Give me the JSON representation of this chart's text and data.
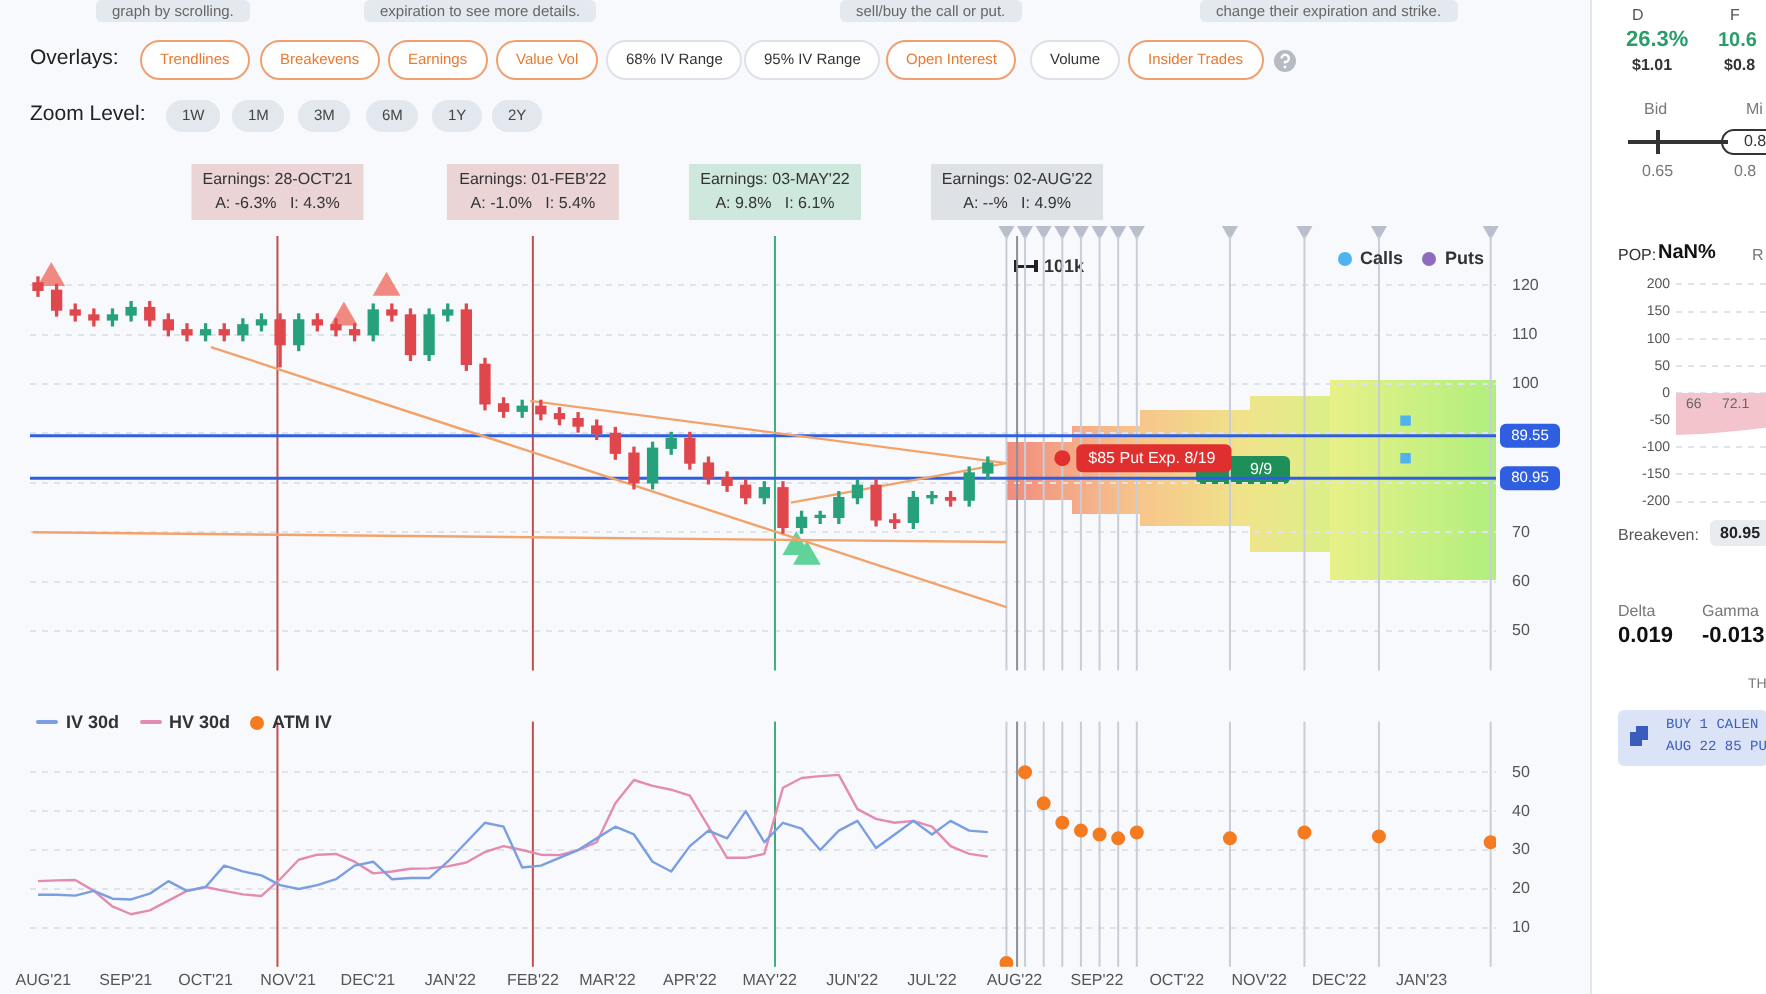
{
  "chart_data": [
    {
      "type": "candlestick",
      "x": [
        "2021-07-30",
        "2021-08-06",
        "2021-08-13",
        "2021-08-20",
        "2021-08-27",
        "2021-09-03",
        "2021-09-10",
        "2021-09-17",
        "2021-09-24",
        "2021-10-01",
        "2021-10-08",
        "2021-10-15",
        "2021-10-22",
        "2021-10-29",
        "2021-11-05",
        "2021-11-12",
        "2021-11-19",
        "2021-11-26",
        "2021-12-03",
        "2021-12-10",
        "2021-12-17",
        "2021-12-24",
        "2021-12-31",
        "2022-01-07",
        "2022-01-14",
        "2022-01-21",
        "2022-01-28",
        "2022-02-04",
        "2022-02-11",
        "2022-02-18",
        "2022-02-25",
        "2022-03-04",
        "2022-03-11",
        "2022-03-18",
        "2022-03-25",
        "2022-04-01",
        "2022-04-08",
        "2022-04-15",
        "2022-04-22",
        "2022-04-29",
        "2022-05-06",
        "2022-05-13",
        "2022-05-20",
        "2022-05-27",
        "2022-06-03",
        "2022-06-10",
        "2022-06-17",
        "2022-06-24",
        "2022-07-01",
        "2022-07-08",
        "2022-07-15",
        "2022-07-22"
      ],
      "ohlc": [
        [
          120.5,
          121.7,
          117.8,
          119
        ],
        [
          119,
          120.2,
          113.8,
          115
        ],
        [
          115,
          116.2,
          112.8,
          114
        ],
        [
          114,
          115.2,
          111.8,
          113
        ],
        [
          113,
          115.2,
          111.8,
          114
        ],
        [
          114,
          116.7,
          112.8,
          115.5
        ],
        [
          115.5,
          116.7,
          111.8,
          113
        ],
        [
          113,
          114.2,
          109.8,
          111
        ],
        [
          111,
          112.2,
          108.8,
          110
        ],
        [
          110,
          112.2,
          108.8,
          111
        ],
        [
          111,
          112.2,
          108.8,
          110
        ],
        [
          110,
          113.2,
          108.8,
          112
        ],
        [
          112,
          114.2,
          110.8,
          113
        ],
        [
          113,
          114.2,
          103.5,
          108
        ],
        [
          108,
          114.2,
          106.8,
          113
        ],
        [
          113,
          114.2,
          110.8,
          112
        ],
        [
          112,
          113.2,
          109.8,
          111
        ],
        [
          111,
          112.2,
          108.8,
          110
        ],
        [
          110,
          116.2,
          108.8,
          115
        ],
        [
          115,
          116.2,
          112.8,
          114
        ],
        [
          114,
          115.2,
          104.8,
          106
        ],
        [
          106,
          115.2,
          104.8,
          114
        ],
        [
          114,
          116.2,
          112.8,
          115
        ],
        [
          115,
          116.2,
          102.8,
          104
        ],
        [
          104,
          105.2,
          94.8,
          96
        ],
        [
          96,
          97.2,
          93.3,
          94.5
        ],
        [
          94.5,
          96.7,
          93.3,
          95.5
        ],
        [
          95.5,
          96.7,
          92.8,
          94
        ],
        [
          94,
          95.2,
          91.8,
          93
        ],
        [
          93,
          94.2,
          90.3,
          91.5
        ],
        [
          91.5,
          92.7,
          88.8,
          90
        ],
        [
          90,
          91.2,
          84.8,
          86
        ],
        [
          86,
          87.2,
          78.8,
          80
        ],
        [
          80,
          88.2,
          78.8,
          87
        ],
        [
          87,
          90.2,
          85.8,
          89
        ],
        [
          89,
          90.2,
          82.8,
          84
        ],
        [
          84,
          85.2,
          79.8,
          81
        ],
        [
          81,
          82.2,
          78.3,
          79.5
        ],
        [
          79.5,
          80.7,
          75.8,
          77
        ],
        [
          77,
          80.2,
          75.8,
          79
        ],
        [
          79,
          80.2,
          69.8,
          71
        ],
        [
          71,
          74.2,
          69.8,
          73
        ],
        [
          73,
          74.2,
          71.8,
          73
        ],
        [
          73,
          78.2,
          71.8,
          77
        ],
        [
          77,
          80.7,
          75.8,
          79.5
        ],
        [
          79.5,
          80.7,
          71.3,
          72.5
        ],
        [
          72.5,
          73.7,
          70.8,
          72
        ],
        [
          72,
          78.2,
          70.8,
          77
        ],
        [
          77,
          78.2,
          75.8,
          77
        ],
        [
          77,
          78.2,
          75.3,
          76.5
        ],
        [
          76.5,
          83.2,
          75.3,
          82
        ],
        [
          82,
          85.2,
          80.8,
          84
        ]
      ],
      "colors": [
        "#e0474c",
        "#e0474c",
        "#e0474c",
        "#e0474c",
        "#26a17b",
        "#26a17b",
        "#e0474c",
        "#e0474c",
        "#e0474c",
        "#26a17b",
        "#e0474c",
        "#26a17b",
        "#26a17b",
        "#e0474c",
        "#26a17b",
        "#e0474c",
        "#e0474c",
        "#e0474c",
        "#26a17b",
        "#e0474c",
        "#e0474c",
        "#26a17b",
        "#26a17b",
        "#e0474c",
        "#e0474c",
        "#e0474c",
        "#26a17b",
        "#e0474c",
        "#e0474c",
        "#e0474c",
        "#e0474c",
        "#e0474c",
        "#e0474c",
        "#26a17b",
        "#26a17b",
        "#e0474c",
        "#e0474c",
        "#e0474c",
        "#e0474c",
        "#26a17b",
        "#e0474c",
        "#26a17b",
        "#26a17b",
        "#26a17b",
        "#26a17b",
        "#e0474c",
        "#e0474c",
        "#26a17b",
        "#26a17b",
        "#e0474c",
        "#26a17b",
        "#26a17b"
      ],
      "series": [
        {
          "type": "line",
          "color": "#f2a36b",
          "x": [
            "2021-10-03",
            "2022-07-29"
          ],
          "values": [
            107.5,
            54.8
          ]
        },
        {
          "type": "line",
          "color": "#f2a36b",
          "x": [
            "2022-01-31",
            "2022-07-29"
          ],
          "values": [
            96.6,
            84
          ]
        },
        {
          "type": "line",
          "color": "#f2a36b",
          "x": [
            "2021-07-28",
            "2022-07-29"
          ],
          "values": [
            70,
            68
          ]
        },
        {
          "type": "line",
          "color": "#f2a36b",
          "x": [
            "2022-05-09",
            "2022-07-29"
          ],
          "values": [
            76,
            84
          ]
        },
        {
          "type": "scatter",
          "marker": "triangle",
          "color": "#f08a80",
          "x": [
            "2021-08-04",
            "2021-11-22",
            "2021-12-08"
          ],
          "values": [
            121.5,
            113.5,
            119.5
          ]
        },
        {
          "type": "scatter",
          "marker": "triangle",
          "color": "#5fd39a",
          "x": [
            "2022-05-11",
            "2022-05-15"
          ],
          "values": [
            67,
            65
          ]
        },
        {
          "name": "Calls",
          "type": "scatter",
          "marker": "square",
          "color": "#4fb3f0",
          "x": [
            "2022-12-26",
            "2022-12-26"
          ],
          "values": [
            92.6,
            85
          ]
        },
        {
          "name": "Puts",
          "type": "scatter",
          "marker": "square",
          "color": "#8e6bbf",
          "values": [
            null,
            null,
            null,
            null,
            null,
            null,
            null,
            null,
            null,
            null,
            null,
            null,
            null,
            null,
            null,
            null,
            null,
            null,
            null,
            null,
            null,
            null,
            null,
            null,
            null,
            null,
            null,
            null,
            null,
            null,
            null,
            null,
            null,
            null,
            null,
            null,
            null,
            null,
            null,
            null,
            null,
            null,
            null,
            null,
            null,
            null,
            null,
            null,
            null,
            null,
            null,
            null
          ]
        }
      ],
      "xlim": [
        "2021-07-27",
        "2023-01-29"
      ],
      "ylim": [
        42,
        130
      ],
      "yticks": [
        50,
        60,
        70,
        {
          "value": 80,
          "label": null
        },
        {
          "value": 90,
          "label": null
        },
        100,
        110,
        120
      ],
      "tick_labels": "y",
      "grid": "y",
      "legend": "top right",
      "marker": "none",
      "ref_lines": [
        {
          "axis": "x",
          "value": "2021-10-28",
          "label": "Earnings: 28-OCT'21\nA: -6.3%   I: 4.3%",
          "color": "#c0504d"
        },
        {
          "axis": "x",
          "value": "2022-02-01",
          "label": "Earnings: 01-FEB'22\nA: -1.0%   I: 5.4%",
          "color": "#c0504d"
        },
        {
          "axis": "x",
          "value": "2022-05-03",
          "label": "Earnings: 03-MAY'22\nA: 9.8%   I: 6.1%",
          "color": "#3fae78"
        },
        {
          "axis": "x",
          "value": "2022-08-02",
          "label": "Earnings: 02-AUG'22\nA: --%   I: 4.9%",
          "color": "#8a8f99"
        },
        {
          "axis": "x",
          "value": "2022-07-29",
          "color": "#c8cdd8"
        },
        {
          "axis": "x",
          "value": "2022-08-05",
          "color": "#c8cdd8"
        },
        {
          "axis": "x",
          "value": "2022-08-12",
          "color": "#c8cdd8"
        },
        {
          "axis": "x",
          "value": "2022-08-19",
          "color": "#c8cdd8"
        },
        {
          "axis": "x",
          "value": "2022-08-26",
          "color": "#c8cdd8"
        },
        {
          "axis": "x",
          "value": "2022-09-02",
          "color": "#c8cdd8"
        },
        {
          "axis": "x",
          "value": "2022-09-09",
          "color": "#c8cdd8"
        },
        {
          "axis": "x",
          "value": "2022-09-16",
          "color": "#c8cdd8"
        },
        {
          "axis": "x",
          "value": "2022-10-21",
          "color": "#c8cdd8"
        },
        {
          "axis": "x",
          "value": "2022-11-18",
          "color": "#c8cdd8"
        },
        {
          "axis": "x",
          "value": "2022-12-16",
          "color": "#c8cdd8"
        },
        {
          "axis": "x",
          "value": "2023-01-27",
          "color": "#c8cdd8"
        },
        {
          "axis": "y",
          "value": 89.55,
          "label": "89.55",
          "color": "#2f5fe0"
        },
        {
          "axis": "y",
          "value": 80.95,
          "label": "80.95",
          "color": "#2f5fe0"
        }
      ],
      "annotations": [
        "graph by scrolling.",
        "expiration to see more details.",
        "sell/buy the call or put.",
        "change their expiration and strike.",
        "Overlays:",
        "Trendlines",
        "Breakevens",
        "Earnings",
        "Value Vol",
        "68% IV Range",
        "95% IV Range",
        "Open Interest",
        "Volume",
        "Insider Trades",
        "Zoom Level:",
        "1W",
        "1M",
        "3M",
        "6M",
        "1Y",
        "2Y",
        "101k",
        "9/9",
        {
          "text": "$85 Put Exp. 8/19",
          "x": "2022-08-19",
          "y": 85
        }
      ]
    },
    {
      "type": "line",
      "x": [
        "2021-07-30",
        "2021-08-06",
        "2021-08-13",
        "2021-08-20",
        "2021-08-27",
        "2021-09-03",
        "2021-09-10",
        "2021-09-17",
        "2021-09-24",
        "2021-10-01",
        "2021-10-08",
        "2021-10-15",
        "2021-10-22",
        "2021-10-29",
        "2021-11-05",
        "2021-11-12",
        "2021-11-19",
        "2021-11-26",
        "2021-12-03",
        "2021-12-10",
        "2021-12-17",
        "2021-12-24",
        "2021-12-31",
        "2022-01-07",
        "2022-01-14",
        "2022-01-21",
        "2022-01-28",
        "2022-02-04",
        "2022-02-11",
        "2022-02-18",
        "2022-02-25",
        "2022-03-04",
        "2022-03-11",
        "2022-03-18",
        "2022-03-25",
        "2022-04-01",
        "2022-04-08",
        "2022-04-15",
        "2022-04-22",
        "2022-04-29",
        "2022-05-06",
        "2022-05-13",
        "2022-05-20",
        "2022-05-27",
        "2022-06-03",
        "2022-06-10",
        "2022-06-17",
        "2022-06-24",
        "2022-07-01",
        "2022-07-08",
        "2022-07-15",
        "2022-07-22"
      ],
      "series": [
        {
          "name": "IV 30d",
          "color": "#7b9ee0",
          "values": [
            18.5,
            18.5,
            18.3,
            19.5,
            17.5,
            17.3,
            18.8,
            22,
            19.5,
            20.5,
            26,
            24.5,
            23.5,
            21,
            20,
            21,
            22.5,
            26,
            27,
            22.5,
            22.8,
            22.8,
            27,
            32,
            37,
            36,
            25.5,
            26,
            28,
            30,
            33,
            36,
            34,
            27,
            24.5,
            31,
            35,
            33,
            40,
            32,
            37,
            35.5,
            30,
            35,
            37.5,
            30.5,
            34,
            37.5,
            34,
            37.5,
            35,
            34.6
          ]
        },
        {
          "name": "HV 30d",
          "color": "#e48bb4",
          "values": [
            22,
            22.2,
            22.3,
            19.5,
            15.5,
            13.5,
            14.5,
            17,
            19.5,
            20.5,
            19.5,
            18.6,
            18.2,
            22.5,
            27.5,
            28.8,
            29,
            27,
            24,
            24.5,
            25.2,
            25.3,
            25.8,
            26.8,
            29.5,
            31,
            30,
            28.8,
            28.7,
            30,
            32,
            42,
            48,
            46.5,
            45.5,
            44,
            36,
            28,
            28,
            29,
            46,
            48.5,
            49,
            49.3,
            40.5,
            38,
            37,
            37.5,
            36,
            31,
            29,
            28.3
          ]
        },
        {
          "name": "ATM IV",
          "type": "scatter",
          "marker": "circle",
          "color": "#f47b20",
          "x": [
            "2022-07-29",
            "2022-08-05",
            "2022-08-12",
            "2022-08-19",
            "2022-08-26",
            "2022-09-02",
            "2022-09-09",
            "2022-09-16",
            "2022-10-21",
            "2022-11-18",
            "2022-12-16",
            "2023-01-27"
          ],
          "values": [
            1,
            50,
            42,
            37,
            35,
            34,
            33,
            34.5,
            33,
            34.5,
            33.5,
            32
          ]
        }
      ],
      "xlim": [
        "2021-07-27",
        "2023-01-29"
      ],
      "xticks": [
        {
          "value": "2021-08-01",
          "label": "AUG'21"
        },
        {
          "value": "2021-09-01",
          "label": "SEP'21"
        },
        {
          "value": "2021-10-01",
          "label": "OCT'21"
        },
        {
          "value": "2021-11-01",
          "label": "NOV'21"
        },
        {
          "value": "2021-12-01",
          "label": "DEC'21"
        },
        {
          "value": "2022-01-01",
          "label": "JAN'22"
        },
        {
          "value": "2022-02-01",
          "label": "FEB'22"
        },
        {
          "value": "2022-03-01",
          "label": "MAR'22"
        },
        {
          "value": "2022-04-01",
          "label": "APR'22"
        },
        {
          "value": "2022-05-01",
          "label": "MAY'22"
        },
        {
          "value": "2022-06-01",
          "label": "JUN'22"
        },
        {
          "value": "2022-07-01",
          "label": "JUL'22"
        },
        {
          "value": "2022-08-01",
          "label": "AUG'22"
        },
        {
          "value": "2022-09-01",
          "label": "SEP'22"
        },
        {
          "value": "2022-10-01",
          "label": "OCT'22"
        },
        {
          "value": "2022-11-01",
          "label": "NOV'22"
        },
        {
          "value": "2022-12-01",
          "label": "DEC'22"
        },
        {
          "value": "2023-01-01",
          "label": "JAN'23"
        }
      ],
      "ylim": [
        0,
        63
      ],
      "yticks": [
        10,
        20,
        30,
        40,
        50
      ],
      "grid": "y",
      "legend": "top left",
      "marker": "none",
      "ref_lines": [
        {
          "axis": "x",
          "value": "2021-10-28",
          "color": "#c0504d"
        },
        {
          "axis": "x",
          "value": "2022-02-01",
          "color": "#c0504d"
        },
        {
          "axis": "x",
          "value": "2022-05-03",
          "color": "#3fae78"
        },
        {
          "axis": "x",
          "value": "2022-08-02",
          "color": "#8a8f99"
        },
        {
          "axis": "x",
          "value": "2022-07-29",
          "color": "#c8cdd8"
        },
        {
          "axis": "x",
          "value": "2022-08-05",
          "color": "#c8cdd8"
        },
        {
          "axis": "x",
          "value": "2022-08-12",
          "color": "#c8cdd8"
        },
        {
          "axis": "x",
          "value": "2022-08-19",
          "color": "#c8cdd8"
        },
        {
          "axis": "x",
          "value": "2022-08-26",
          "color": "#c8cdd8"
        },
        {
          "axis": "x",
          "value": "2022-09-02",
          "color": "#c8cdd8"
        },
        {
          "axis": "x",
          "value": "2022-09-09",
          "color": "#c8cdd8"
        },
        {
          "axis": "x",
          "value": "2022-09-16",
          "color": "#c8cdd8"
        },
        {
          "axis": "x",
          "value": "2022-10-21",
          "color": "#c8cdd8"
        },
        {
          "axis": "x",
          "value": "2022-11-18",
          "color": "#c8cdd8"
        },
        {
          "axis": "x",
          "value": "2022-12-16",
          "color": "#c8cdd8"
        },
        {
          "axis": "x",
          "value": "2023-01-27",
          "color": "#c8cdd8"
        }
      ]
    },
    {
      "type": "area",
      "categories": [
        null,
        null,
        null,
        null
      ],
      "series": [
        {
          "color": "#f3c4cc",
          "values": [
            -75,
            -73,
            -68,
            -62
          ]
        }
      ],
      "ylim": [
        -200,
        200
      ],
      "yticks": [
        -200,
        -150,
        -100,
        -50,
        0,
        50,
        100,
        150,
        200
      ],
      "tick_labels": "y",
      "grid": "y",
      "marker": "none",
      "annotations": [
        "66",
        "72.1"
      ]
    },
    {
      "type": "other",
      "annotations": [
        "D",
        "26.3%",
        "$1.01",
        "F",
        "10.6",
        "$0.8",
        "Bid",
        "Mi",
        "0.8",
        "0.65",
        "0.8",
        "POP:",
        "NaN%",
        "R",
        "Breakeven:",
        "80.95",
        "Delta",
        "0.019",
        "Gamma",
        "-0.013",
        "TH",
        "BUY 1 CALEN",
        "AUG 22 85 PU"
      ]
    }
  ]
}
